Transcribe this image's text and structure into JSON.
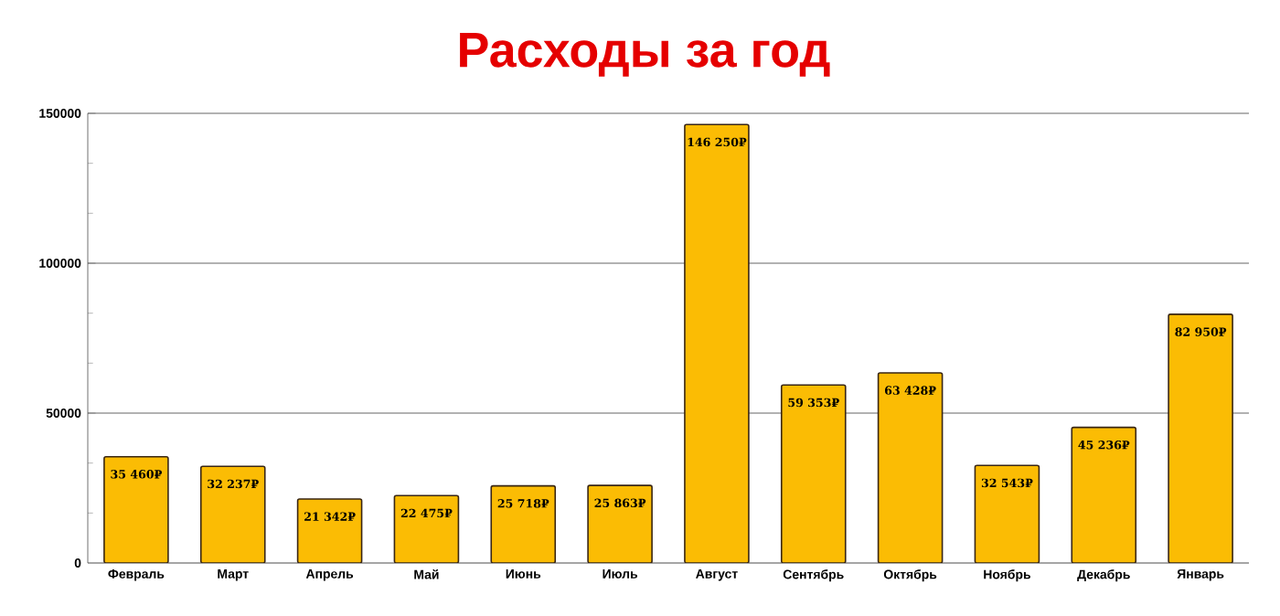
{
  "chart_data": {
    "type": "bar",
    "title": "Расходы за год",
    "categories": [
      "Февраль",
      "Март",
      "Апрель",
      "Май",
      "Июнь",
      "Июль",
      "Август",
      "Сентябрь",
      "Октябрь",
      "Ноябрь",
      "Декабрь",
      "Январь"
    ],
    "values": [
      35460,
      32237,
      21342,
      22475,
      25718,
      25863,
      146250,
      59353,
      63428,
      32543,
      45236,
      82950
    ],
    "value_labels": [
      "35 460₽",
      "32 237₽",
      "21 342₽",
      "22 475₽",
      "25 718₽",
      "25 863₽",
      "146 250₽",
      "59 353₽",
      "63 428₽",
      "32 543₽",
      "45 236₽",
      "82 950₽"
    ],
    "color": "#fbbc04",
    "ylim": [
      0,
      150000
    ],
    "yticks": [
      0,
      50000,
      100000,
      150000
    ],
    "grid": "y"
  }
}
